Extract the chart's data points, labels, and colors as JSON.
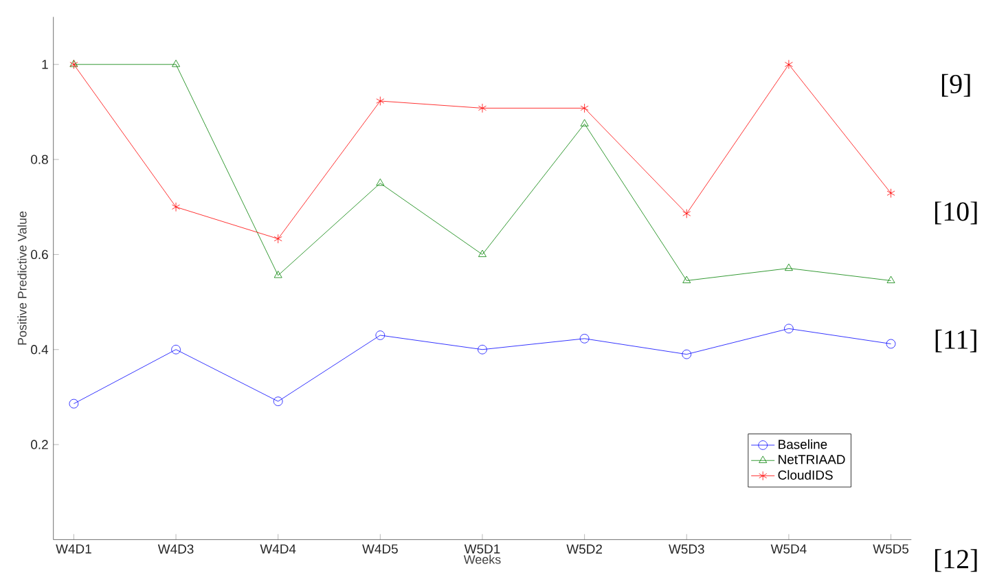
{
  "chart_data": {
    "type": "line",
    "xlabel": "Weeks",
    "ylabel": "Positive Predictive Value",
    "categories": [
      "W4D1",
      "W4D3",
      "W4D4",
      "W4D5",
      "W5D1",
      "W5D2",
      "W5D3",
      "W5D4",
      "W5D5"
    ],
    "series": [
      {
        "name": "Baseline",
        "color": "#0000ff",
        "marker": "circle",
        "values": [
          0.286,
          0.4,
          0.291,
          0.43,
          0.4,
          0.423,
          0.39,
          0.444,
          0.412
        ]
      },
      {
        "name": "NetTRIAAD",
        "color": "#008000",
        "marker": "triangle",
        "values": [
          1,
          1,
          0.556,
          0.75,
          0.6,
          0.875,
          0.545,
          0.571,
          0.545
        ]
      },
      {
        "name": "CloudIDS",
        "color": "#ff0000",
        "marker": "cross",
        "values": [
          1,
          0.7,
          0.633,
          0.923,
          0.908,
          0.908,
          0.686,
          1,
          0.729
        ]
      }
    ],
    "ylim": [
      0,
      1.1
    ],
    "yticks": [
      0.2,
      0.4,
      0.6,
      0.8,
      1
    ],
    "legend": "bottom right",
    "grid": false,
    "line_style": "solid",
    "annotations": [
      "[9]",
      "[10]",
      "[11]",
      "[12]"
    ]
  }
}
